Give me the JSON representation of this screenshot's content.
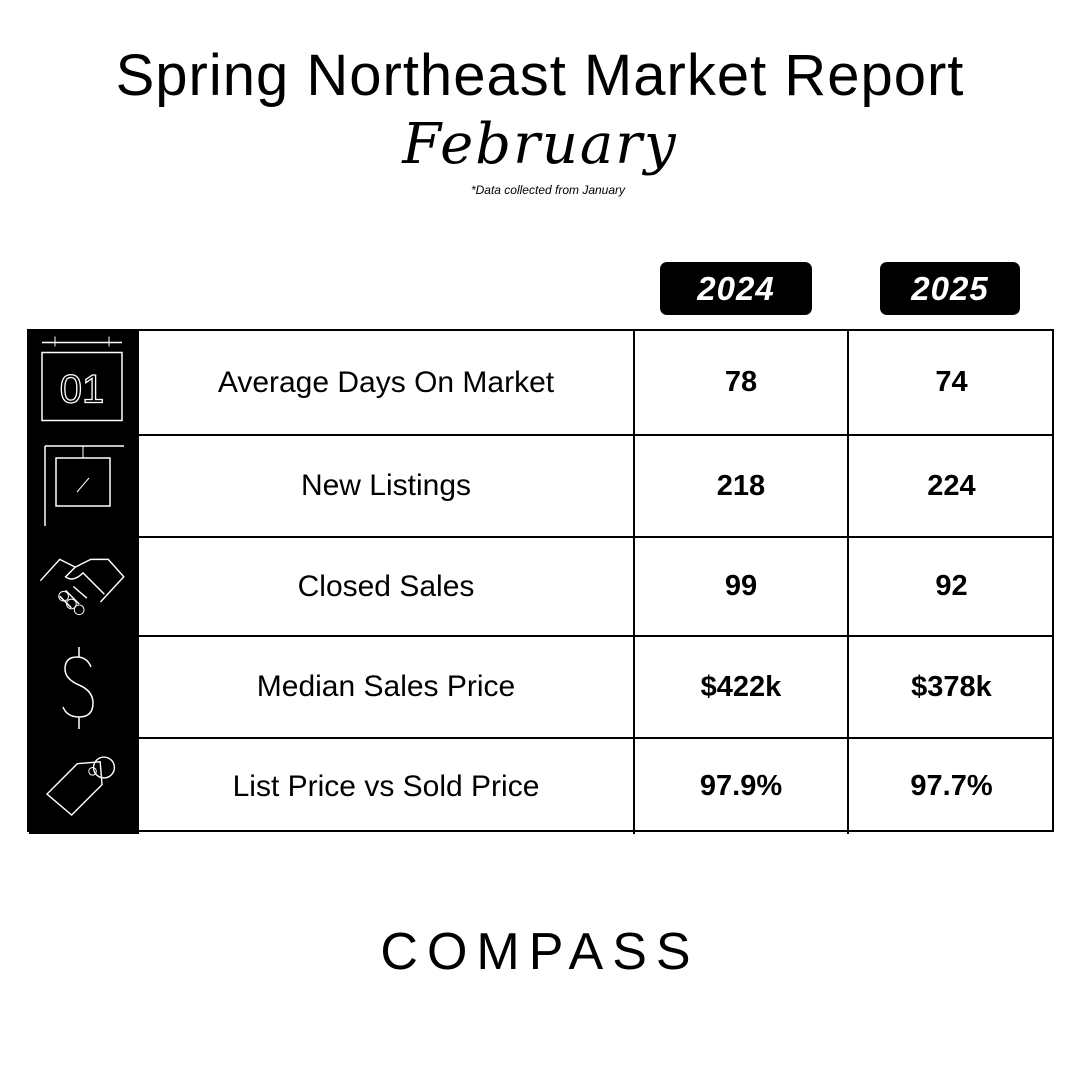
{
  "header": {
    "title": "Spring Northeast Market Report",
    "subtitle": "February",
    "note": "*Data collected from January"
  },
  "table": {
    "columns": [
      "2024",
      "2025"
    ],
    "rows": [
      {
        "icon_text": "01",
        "label": "Average Days On Market",
        "values": [
          "78",
          "74"
        ]
      },
      {
        "label": "New Listings",
        "values": [
          "218",
          "224"
        ]
      },
      {
        "label": "Closed Sales",
        "values": [
          "99",
          "92"
        ]
      },
      {
        "label": "Median Sales Price",
        "values": [
          "$422k",
          "$378k"
        ]
      },
      {
        "label": "List Price vs Sold Price",
        "values": [
          "97.9%",
          "97.7%"
        ]
      }
    ]
  },
  "footer": {
    "logo": "COMPASS"
  }
}
